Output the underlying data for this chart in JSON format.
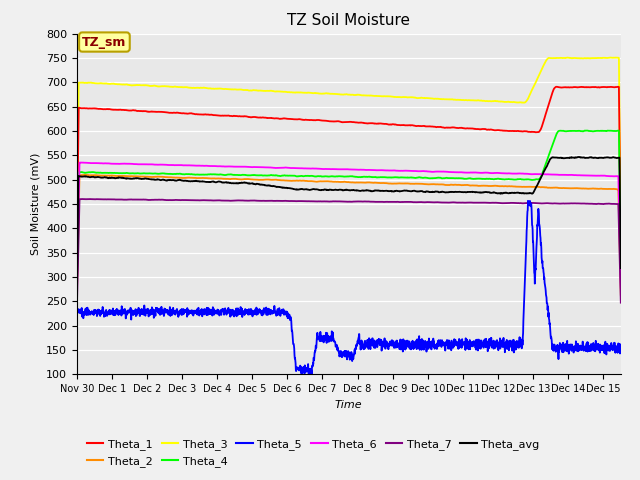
{
  "title": "TZ Soil Moisture",
  "ylabel": "Soil Moisture (mV)",
  "xlabel": "Time",
  "annotation": "TZ_sm",
  "ylim": [
    100,
    800
  ],
  "yticks": [
    100,
    150,
    200,
    250,
    300,
    350,
    400,
    450,
    500,
    550,
    600,
    650,
    700,
    750,
    800
  ],
  "xlim": [
    0,
    15.5
  ],
  "xtick_labels": [
    "Nov 30",
    "Dec 1",
    "Dec 2",
    "Dec 3",
    "Dec 4",
    "Dec 5",
    "Dec 6",
    "Dec 7",
    "Dec 8",
    "Dec 9",
    "Dec 10",
    "Dec 11",
    "Dec 12",
    "Dec 13",
    "Dec 14",
    "Dec 15"
  ],
  "xtick_positions": [
    0,
    1,
    2,
    3,
    4,
    5,
    6,
    7,
    8,
    9,
    10,
    11,
    12,
    13,
    14,
    15
  ],
  "colors": {
    "Theta_1": "#ff0000",
    "Theta_2": "#ff8c00",
    "Theta_3": "#ffff00",
    "Theta_4": "#00ff00",
    "Theta_5": "#0000ff",
    "Theta_6": "#ff00ff",
    "Theta_7": "#800080",
    "Theta_avg": "#000000"
  },
  "background_color": "#e8e8e8",
  "fig_background": "#f0f0f0",
  "grid_color": "white"
}
